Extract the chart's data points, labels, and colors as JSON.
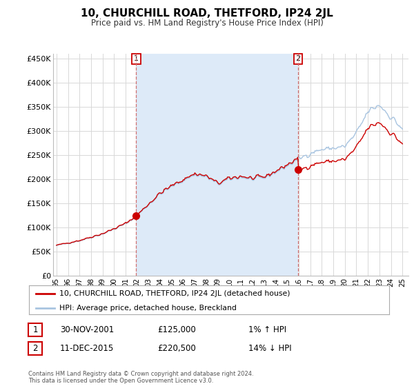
{
  "title": "10, CHURCHILL ROAD, THETFORD, IP24 2JL",
  "subtitle": "Price paid vs. HM Land Registry's House Price Index (HPI)",
  "ylabel_ticks": [
    "£0",
    "£50K",
    "£100K",
    "£150K",
    "£200K",
    "£250K",
    "£300K",
    "£350K",
    "£400K",
    "£450K"
  ],
  "ytick_values": [
    0,
    50000,
    100000,
    150000,
    200000,
    250000,
    300000,
    350000,
    400000,
    450000
  ],
  "ylim": [
    0,
    460000
  ],
  "sale1_date_x": 2001.92,
  "sale1_price": 125000,
  "sale2_date_x": 2015.95,
  "sale2_price": 220500,
  "vline1_x": 2001.92,
  "vline2_x": 2015.95,
  "hpi_color": "#a8c4e0",
  "sale_color": "#cc0000",
  "vline_color": "#d07070",
  "shade_color": "#ddeaf8",
  "grid_color": "#d8d8d8",
  "bg_color": "#ffffff",
  "legend_house": "10, CHURCHILL ROAD, THETFORD, IP24 2JL (detached house)",
  "legend_hpi": "HPI: Average price, detached house, Breckland",
  "table_row1": [
    "1",
    "30-NOV-2001",
    "£125,000",
    "1% ↑ HPI"
  ],
  "table_row2": [
    "2",
    "11-DEC-2015",
    "£220,500",
    "14% ↓ HPI"
  ],
  "footer": "Contains HM Land Registry data © Crown copyright and database right 2024.\nThis data is licensed under the Open Government Licence v3.0.",
  "xlim_start": 1994.7,
  "xlim_end": 2025.5,
  "xtick_years": [
    1995,
    1996,
    1997,
    1998,
    1999,
    2000,
    2001,
    2002,
    2003,
    2004,
    2005,
    2006,
    2007,
    2008,
    2009,
    2010,
    2011,
    2012,
    2013,
    2014,
    2015,
    2016,
    2017,
    2018,
    2019,
    2020,
    2021,
    2022,
    2023,
    2024,
    2025
  ],
  "xtick_labels": [
    "95",
    "96",
    "97",
    "98",
    "99",
    "00",
    "01",
    "02",
    "03",
    "04",
    "05",
    "06",
    "07",
    "08",
    "09",
    "10",
    "11",
    "12",
    "13",
    "14",
    "15",
    "16",
    "17",
    "18",
    "19",
    "20",
    "21",
    "22",
    "23",
    "24",
    "25"
  ]
}
